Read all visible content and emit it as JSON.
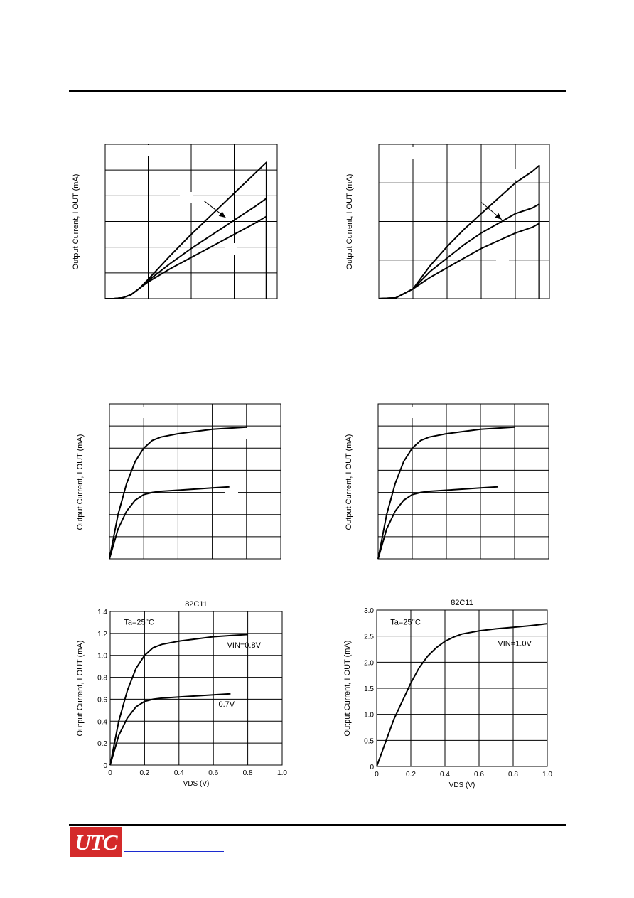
{
  "logo": {
    "text": "UTC"
  },
  "chart_data": [
    {
      "type": "line",
      "title": "",
      "xlabel": "",
      "ylabel": "Output Current, I OUT (mA)",
      "xlim": [
        0,
        4
      ],
      "ylim": [
        0,
        6
      ],
      "grid": true,
      "series": [
        {
          "name": "",
          "x": [
            0,
            0.2,
            0.4,
            0.6,
            0.8,
            1.0,
            1.5,
            2.0,
            2.5,
            3.0,
            3.5,
            3.75,
            3.75
          ],
          "y": [
            0,
            0,
            0.03,
            0.15,
            0.4,
            0.75,
            1.65,
            2.5,
            3.3,
            4.1,
            4.9,
            5.3,
            0
          ]
        },
        {
          "name": "",
          "x": [
            0,
            0.2,
            0.4,
            0.6,
            0.8,
            1.0,
            1.5,
            2.0,
            2.5,
            3.0,
            3.5,
            3.75,
            3.75
          ],
          "y": [
            0,
            0,
            0.03,
            0.15,
            0.4,
            0.7,
            1.35,
            1.95,
            2.5,
            3.05,
            3.6,
            3.9,
            0
          ]
        },
        {
          "name": "",
          "x": [
            0,
            0.2,
            0.4,
            0.6,
            0.8,
            1.0,
            1.5,
            2.0,
            2.5,
            3.0,
            3.5,
            3.75,
            3.75
          ],
          "y": [
            0,
            0,
            0.03,
            0.15,
            0.4,
            0.65,
            1.15,
            1.6,
            2.05,
            2.5,
            2.95,
            3.2,
            0
          ]
        }
      ],
      "annotation_arrow": {
        "from": [
          2.3,
          3.8
        ],
        "to": [
          2.8,
          3.15
        ]
      }
    },
    {
      "type": "line",
      "title": "",
      "xlabel": "",
      "ylabel": "Output Current, I OUT (mA)",
      "xlim": [
        0,
        5
      ],
      "ylim": [
        0,
        4
      ],
      "grid": true,
      "series": [
        {
          "name": "",
          "x": [
            0,
            0.5,
            1.0,
            1.5,
            2.0,
            2.5,
            3.0,
            3.5,
            4.0,
            4.5,
            4.7,
            4.7
          ],
          "y": [
            0,
            0.02,
            0.25,
            0.85,
            1.35,
            1.8,
            2.2,
            2.6,
            3.0,
            3.3,
            3.45,
            0
          ]
        },
        {
          "name": "",
          "x": [
            0,
            0.5,
            1.0,
            1.5,
            2.0,
            2.5,
            3.0,
            3.5,
            4.0,
            4.5,
            4.7,
            4.7
          ],
          "y": [
            0,
            0.02,
            0.25,
            0.7,
            1.05,
            1.4,
            1.7,
            1.95,
            2.2,
            2.35,
            2.45,
            0
          ]
        },
        {
          "name": "",
          "x": [
            0,
            0.5,
            1.0,
            1.5,
            2.0,
            2.5,
            3.0,
            3.5,
            4.0,
            4.5,
            4.7,
            4.7
          ],
          "y": [
            0,
            0.02,
            0.25,
            0.55,
            0.8,
            1.05,
            1.3,
            1.5,
            1.7,
            1.85,
            1.95,
            0
          ]
        }
      ],
      "annotation_arrow": {
        "from": [
          3.0,
          2.5
        ],
        "to": [
          3.6,
          2.05
        ]
      }
    },
    {
      "type": "line",
      "title": "",
      "xlabel": "",
      "ylabel": "Output Current, I OUT (mA)",
      "xlim": [
        0,
        1.0
      ],
      "ylim": [
        0,
        1.4
      ],
      "grid": true,
      "series": [
        {
          "name": "",
          "x": [
            0,
            0.05,
            0.1,
            0.15,
            0.2,
            0.25,
            0.3,
            0.4,
            0.5,
            0.6,
            0.7,
            0.8
          ],
          "y": [
            0,
            0.4,
            0.68,
            0.88,
            1.0,
            1.07,
            1.1,
            1.13,
            1.15,
            1.17,
            1.18,
            1.19
          ]
        },
        {
          "name": "",
          "x": [
            0,
            0.05,
            0.1,
            0.15,
            0.2,
            0.25,
            0.3,
            0.4,
            0.5,
            0.6,
            0.7
          ],
          "y": [
            0,
            0.27,
            0.43,
            0.53,
            0.58,
            0.6,
            0.61,
            0.62,
            0.63,
            0.64,
            0.65
          ]
        }
      ]
    },
    {
      "type": "line",
      "title": "",
      "xlabel": "",
      "ylabel": "Output Current, I OUT (mA)",
      "xlim": [
        0,
        1.0
      ],
      "ylim": [
        0,
        1.4
      ],
      "grid": true,
      "series": [
        {
          "name": "",
          "x": [
            0,
            0.05,
            0.1,
            0.15,
            0.2,
            0.25,
            0.3,
            0.4,
            0.5,
            0.6,
            0.7,
            0.8
          ],
          "y": [
            0,
            0.4,
            0.68,
            0.88,
            1.0,
            1.07,
            1.1,
            1.13,
            1.15,
            1.17,
            1.18,
            1.19
          ]
        },
        {
          "name": "",
          "x": [
            0,
            0.05,
            0.1,
            0.15,
            0.2,
            0.25,
            0.3,
            0.4,
            0.5,
            0.6,
            0.7
          ],
          "y": [
            0,
            0.27,
            0.43,
            0.53,
            0.58,
            0.6,
            0.61,
            0.62,
            0.63,
            0.64,
            0.65
          ]
        }
      ]
    },
    {
      "type": "line",
      "title": "82C11",
      "xlabel": "VDS (V)",
      "ylabel": "Output Current, I OUT (mA)",
      "xlim": [
        0,
        1.0
      ],
      "ylim": [
        0,
        1.4
      ],
      "grid": true,
      "xticks": [
        "0",
        "0.2",
        "0.4",
        "0.6",
        "0.8",
        "1.0"
      ],
      "yticks": [
        "0",
        "0.2",
        "0.4",
        "0.6",
        "0.8",
        "1.0",
        "1.2",
        "1.4"
      ],
      "annotations": [
        {
          "text": "Ta=25°C",
          "x": 0.08,
          "y": 1.28
        },
        {
          "text": "VIN=0.8V",
          "x": 0.68,
          "y": 1.07
        },
        {
          "text": "0.7V",
          "x": 0.63,
          "y": 0.53
        }
      ],
      "series": [
        {
          "name": "VIN=0.8V",
          "x": [
            0,
            0.05,
            0.1,
            0.15,
            0.2,
            0.25,
            0.3,
            0.4,
            0.5,
            0.6,
            0.7,
            0.8
          ],
          "y": [
            0,
            0.4,
            0.68,
            0.88,
            1.0,
            1.07,
            1.1,
            1.13,
            1.15,
            1.17,
            1.18,
            1.19
          ]
        },
        {
          "name": "0.7V",
          "x": [
            0,
            0.05,
            0.1,
            0.15,
            0.2,
            0.25,
            0.3,
            0.4,
            0.5,
            0.6,
            0.7
          ],
          "y": [
            0,
            0.27,
            0.43,
            0.53,
            0.58,
            0.6,
            0.61,
            0.62,
            0.63,
            0.64,
            0.65
          ]
        }
      ]
    },
    {
      "type": "line",
      "title": "82C11",
      "xlabel": "VDS (V)",
      "ylabel": "Output Current, I OUT (mA)",
      "xlim": [
        0,
        1.0
      ],
      "ylim": [
        0,
        3.0
      ],
      "grid": true,
      "xticks": [
        "0",
        "0.2",
        "0.4",
        "0.6",
        "0.8",
        "1.0"
      ],
      "yticks": [
        "0",
        "0.5",
        "1.0",
        "1.5",
        "2.0",
        "2.5",
        "3.0"
      ],
      "annotations": [
        {
          "text": "Ta=25°C",
          "x": 0.08,
          "y": 2.72
        },
        {
          "text": "VIN=1.0V",
          "x": 0.71,
          "y": 2.31
        }
      ],
      "series": [
        {
          "name": "VIN=1.0V",
          "x": [
            0,
            0.05,
            0.1,
            0.15,
            0.2,
            0.25,
            0.3,
            0.35,
            0.4,
            0.45,
            0.5,
            0.6,
            0.7,
            0.8,
            0.9,
            1.0
          ],
          "y": [
            0,
            0.45,
            0.9,
            1.25,
            1.6,
            1.9,
            2.12,
            2.28,
            2.4,
            2.48,
            2.54,
            2.6,
            2.64,
            2.67,
            2.7,
            2.74
          ]
        }
      ]
    }
  ]
}
